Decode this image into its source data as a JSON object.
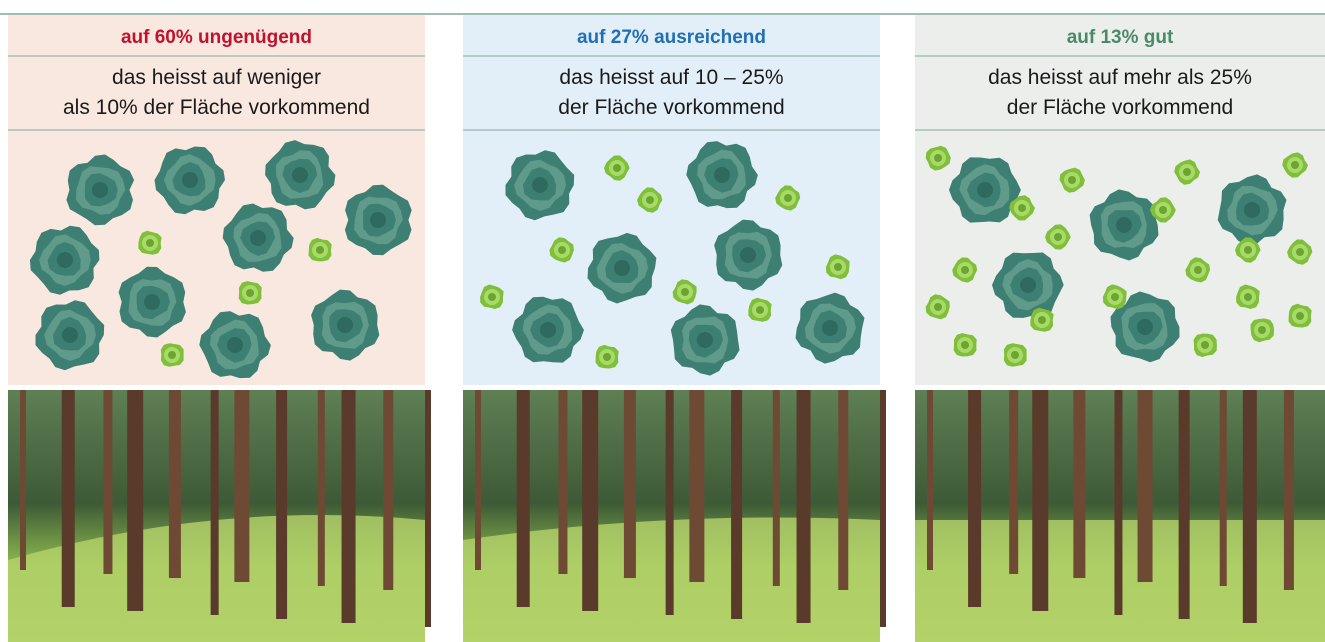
{
  "panels": [
    {
      "heading": "auf 60% ungenügend",
      "description": [
        "das heisst auf weniger",
        "als 10% der Fläche vorkommend"
      ]
    },
    {
      "heading": "auf 27% ausreichend",
      "description": [
        "das heisst auf 10 – 25%",
        "der Fläche vorkommend"
      ]
    },
    {
      "heading": "auf 13% gut",
      "description": [
        "das heisst auf mehr als 25%",
        "der Fläche vorkommend"
      ]
    }
  ]
}
